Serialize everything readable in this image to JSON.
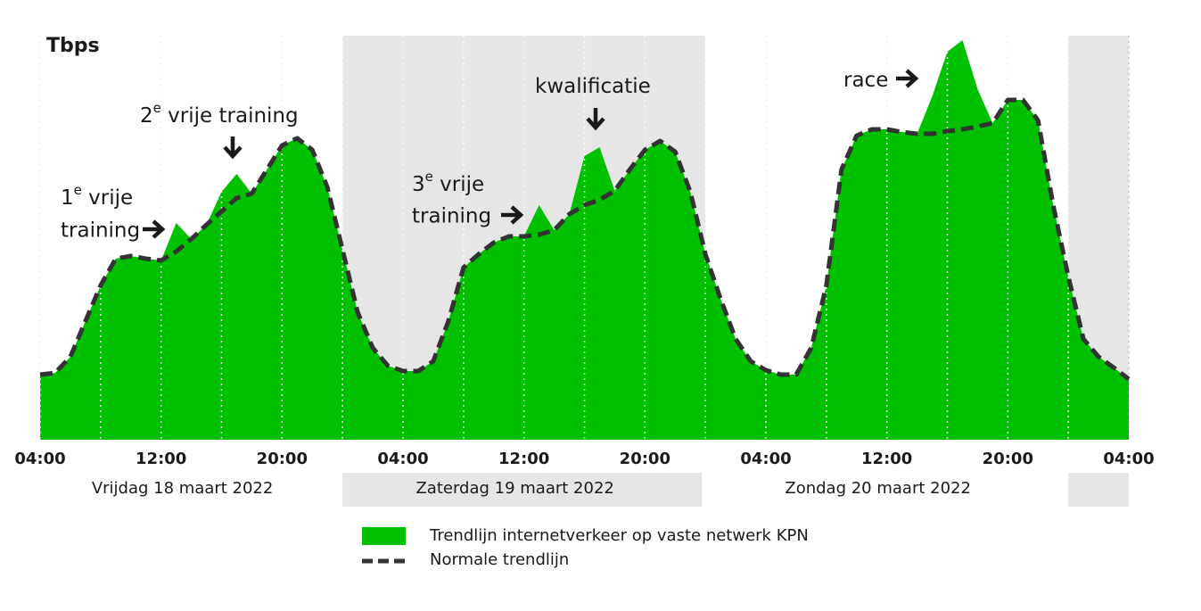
{
  "chart_data": {
    "type": "area",
    "title": "Tbps",
    "x": [
      0,
      1,
      2,
      3,
      4,
      5,
      6,
      7,
      8,
      9,
      10,
      11,
      12,
      13,
      14,
      15,
      16,
      17,
      18,
      19,
      20,
      21,
      22,
      23,
      24,
      25,
      26,
      27,
      28,
      29,
      30,
      31,
      32,
      33,
      34,
      35,
      36,
      37,
      38,
      39,
      40,
      41,
      42,
      43,
      44,
      45,
      46,
      47,
      48,
      49,
      50,
      51,
      52,
      53,
      54,
      55,
      56,
      57,
      58,
      59,
      60,
      61,
      62,
      63,
      64,
      65,
      66,
      67,
      68,
      69,
      70,
      71,
      72
    ],
    "xlim": [
      0,
      72
    ],
    "xticks": [
      {
        "value": 0,
        "label": "04:00"
      },
      {
        "value": 8,
        "label": "12:00"
      },
      {
        "value": 16,
        "label": "20:00"
      },
      {
        "value": 24,
        "label": "04:00"
      },
      {
        "value": 32,
        "label": "12:00"
      },
      {
        "value": 40,
        "label": "20:00"
      },
      {
        "value": 48,
        "label": "04:00"
      },
      {
        "value": 56,
        "label": "12:00"
      },
      {
        "value": 64,
        "label": "20:00"
      },
      {
        "value": 72,
        "label": "04:00"
      }
    ],
    "ylim": [
      0,
      453
    ],
    "days": [
      "Vrijdag 18 maart 2022",
      "Zaterdag 19 maart 2022",
      "Zondag 20 maart 2022"
    ],
    "series": [
      {
        "name": "Trendlijn internetverkeer op vaste netwerk KPN",
        "color": "#00c000",
        "values": [
          73,
          75,
          93,
          133,
          173,
          203,
          206,
          203,
          201,
          243,
          225,
          241,
          278,
          298,
          276,
          303,
          330,
          338,
          325,
          283,
          213,
          143,
          103,
          83,
          77,
          77,
          88,
          133,
          193,
          208,
          221,
          228,
          228,
          263,
          235,
          253,
          318,
          328,
          279,
          303,
          325,
          335,
          323,
          278,
          208,
          158,
          113,
          88,
          78,
          73,
          73,
          103,
          173,
          303,
          341,
          348,
          348,
          345,
          343,
          385,
          435,
          448,
          393,
          355,
          381,
          381,
          358,
          263,
          183,
          113,
          93,
          81,
          68
        ]
      },
      {
        "name": "Normale trendlijn",
        "color": "#333333",
        "values": [
          73,
          75,
          93,
          133,
          173,
          203,
          206,
          203,
          201,
          211,
          225,
          241,
          256,
          271,
          276,
          303,
          330,
          338,
          325,
          283,
          213,
          143,
          103,
          83,
          77,
          77,
          88,
          133,
          193,
          208,
          221,
          228,
          228,
          230,
          235,
          253,
          263,
          269,
          279,
          303,
          325,
          335,
          323,
          278,
          208,
          158,
          113,
          88,
          78,
          73,
          73,
          103,
          173,
          303,
          341,
          348,
          348,
          345,
          343,
          343,
          346,
          348,
          351,
          355,
          381,
          381,
          358,
          263,
          183,
          113,
          93,
          81,
          68
        ]
      }
    ],
    "annotations": [
      {
        "lead": "1",
        "sup": "e",
        "rest": " vrije",
        "line2": "training"
      },
      {
        "lead": "2",
        "sup": "e",
        "rest": " vrije training"
      },
      {
        "lead": "3",
        "sup": "e",
        "rest": " vrije",
        "line2": "training"
      },
      {
        "rest": "kwalificatie"
      },
      {
        "rest": "race"
      }
    ]
  }
}
